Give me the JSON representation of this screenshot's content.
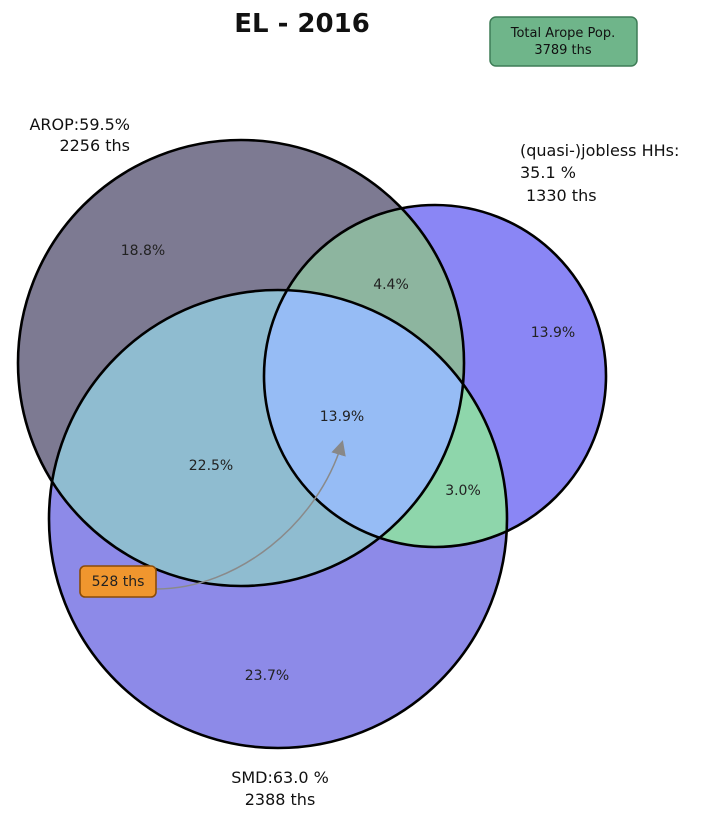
{
  "title": "EL - 2016",
  "total_box": {
    "line1": "Total Arope Pop.",
    "line2": "3789 ths"
  },
  "sets": {
    "arop": {
      "line1": "AROP:59.5%",
      "line2": "2256 ths"
    },
    "jobless": {
      "line1": "(quasi-)jobless HHs:",
      "line2": "35.1 %",
      "line3": "1330 ths"
    },
    "smd": {
      "line1": "SMD:63.0 %",
      "line2": "2388 ths"
    }
  },
  "regions": {
    "arop_only": "18.8%",
    "arop_jobless": "4.4%",
    "jobless_only": "13.9%",
    "all_three": "13.9%",
    "arop_smd": "22.5%",
    "jobless_smd": "3.0%",
    "smd_only": "23.7%"
  },
  "callout": {
    "text": "528 ths"
  },
  "colors": {
    "arop": "#5f5a74",
    "jobless": "#3d3dff",
    "smd": "#2f2fd6",
    "total_box_fill": "#6fb58a",
    "total_box_stroke": "#3e7d57",
    "callout_fill": "#f0962e",
    "callout_stroke": "#8a4b08",
    "circle_stroke": "#000000"
  }
}
